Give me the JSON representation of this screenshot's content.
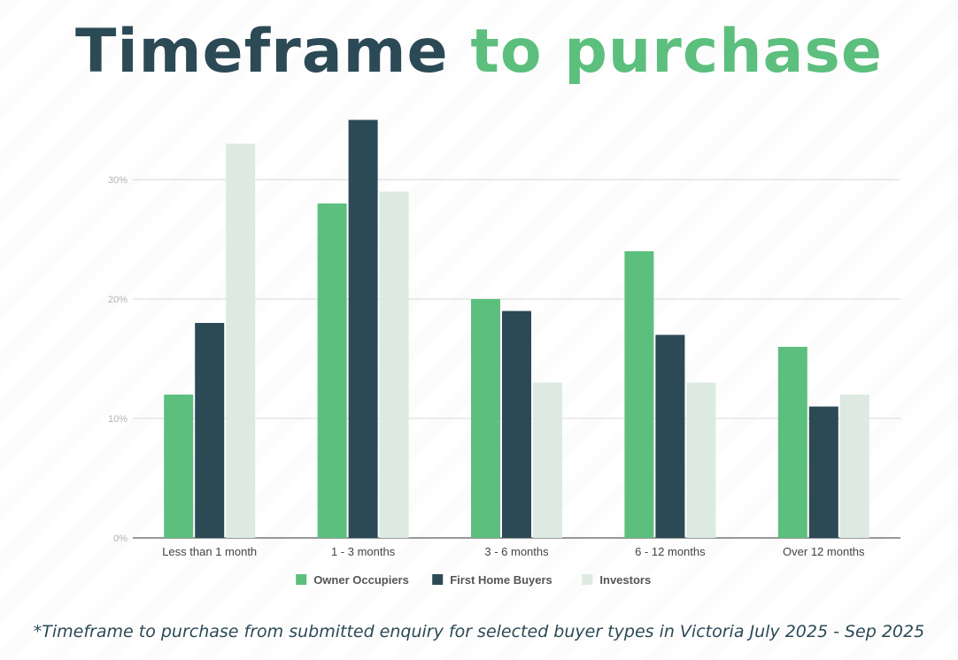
{
  "title": {
    "part1": "Timeframe",
    "part2": "to purchase"
  },
  "footnote": "*Timeframe to purchase from submitted enquiry for selected buyer types in Victoria July 2025 - Sep 2025",
  "chart_data": {
    "type": "bar",
    "categories": [
      "Less than 1 month",
      "1 - 3 months",
      "3 - 6 months",
      "6 - 12 months",
      "Over 12 months"
    ],
    "series": [
      {
        "name": "Owner Occupiers",
        "color": "#5cbf7d",
        "values": [
          12,
          28,
          20,
          24,
          16
        ]
      },
      {
        "name": "First Home Buyers",
        "color": "#2b4a56",
        "values": [
          18,
          35,
          19,
          17,
          11
        ]
      },
      {
        "name": "Investors",
        "color": "#dceae2",
        "values": [
          33,
          29,
          13,
          13,
          12
        ]
      }
    ],
    "yticks": [
      0,
      10,
      20,
      30
    ],
    "ytick_labels": [
      "0%",
      "10%",
      "20%",
      "30%"
    ],
    "ylim": [
      0,
      35
    ],
    "grid": true,
    "legend_position": "bottom-center"
  }
}
